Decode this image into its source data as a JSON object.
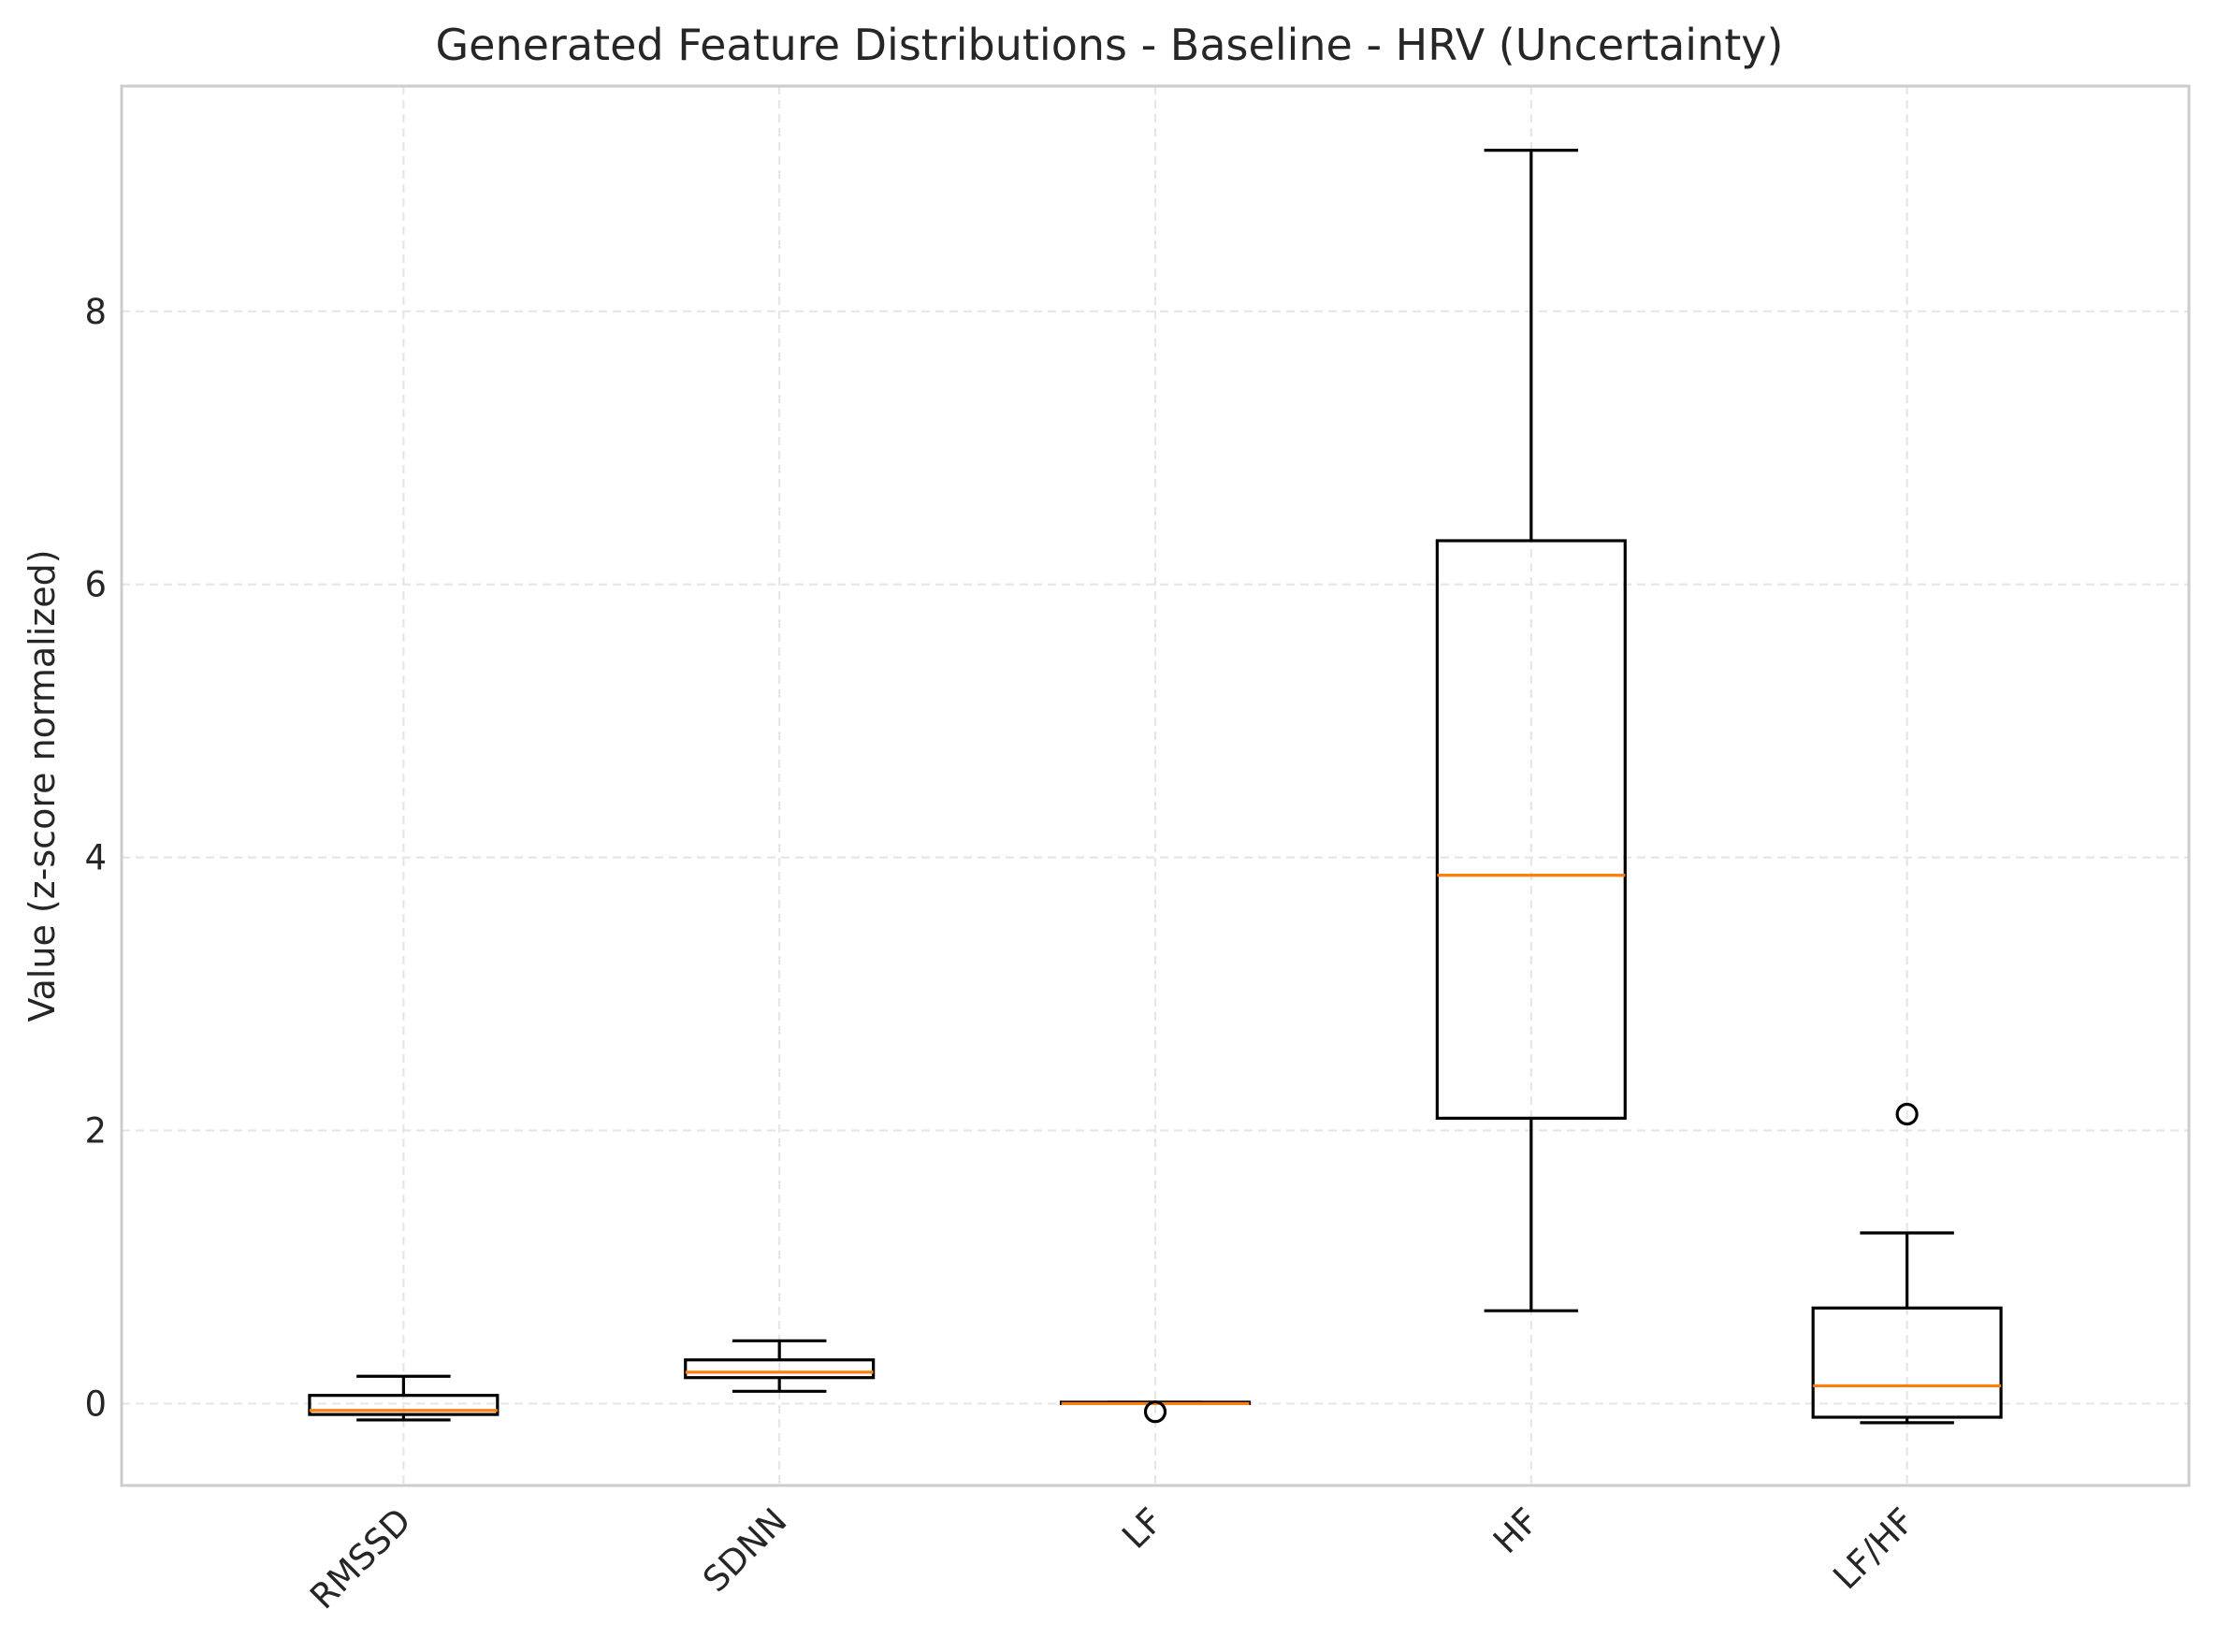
{
  "chart_data": {
    "type": "box",
    "title": "Generated Feature Distributions - Baseline - HRV (Uncertainty)",
    "xlabel": "",
    "ylabel": "Value (z-score normalized)",
    "categories": [
      "RMSSD",
      "SDNN",
      "LF",
      "HF",
      "LF/HF"
    ],
    "yticks": [
      0,
      2,
      4,
      6,
      8
    ],
    "ytick_labels": [
      "0",
      "2",
      "4",
      "6",
      "8"
    ],
    "ylim": [
      -0.6,
      9.65
    ],
    "grid": true,
    "boxes": [
      {
        "whisker_low": -0.12,
        "q1": -0.08,
        "median": -0.05,
        "q3": 0.06,
        "whisker_high": 0.2,
        "outliers": []
      },
      {
        "whisker_low": 0.09,
        "q1": 0.19,
        "median": 0.23,
        "q3": 0.32,
        "whisker_high": 0.46,
        "outliers": []
      },
      {
        "whisker_low": 0.0,
        "q1": 0.0,
        "median": 0.0,
        "q3": 0.01,
        "whisker_high": 0.01,
        "outliers": [
          -0.06
        ]
      },
      {
        "whisker_low": 0.68,
        "q1": 2.09,
        "median": 3.87,
        "q3": 6.32,
        "whisker_high": 9.18,
        "outliers": []
      },
      {
        "whisker_low": -0.14,
        "q1": -0.1,
        "median": 0.13,
        "q3": 0.7,
        "whisker_high": 1.25,
        "outliers": [
          2.12
        ]
      }
    ],
    "colors": {
      "box": "#000000",
      "median": "#ff7f0e",
      "grid": "#e6e6e6",
      "frame": "#cccccc"
    }
  }
}
